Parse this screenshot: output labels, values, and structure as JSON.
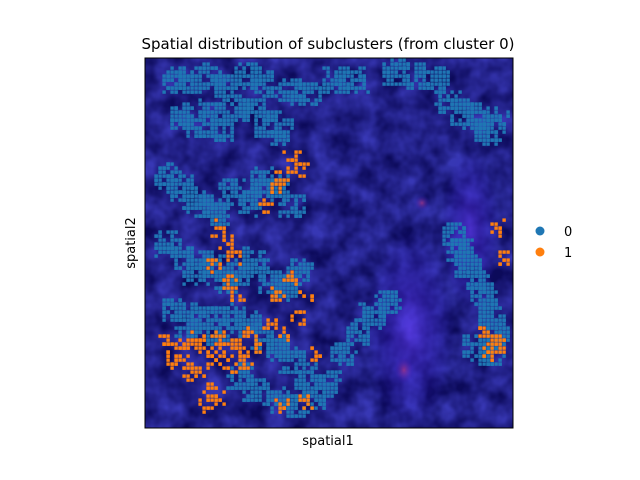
{
  "chart_data": {
    "type": "scatter",
    "title": "Spatial distribution of subclusters (from cluster 0)",
    "xlabel": "spatial1",
    "ylabel": "spatial2",
    "grid": false,
    "legend_placement": "right",
    "background": "tissue image (dark blue fluorescence)",
    "series": [
      {
        "name": "0",
        "color": "#1f77b4",
        "points": [
          [
            0.08,
            0.06
          ],
          [
            0.12,
            0.06
          ],
          [
            0.18,
            0.05
          ],
          [
            0.22,
            0.08
          ],
          [
            0.28,
            0.05
          ],
          [
            0.32,
            0.07
          ],
          [
            0.4,
            0.09
          ],
          [
            0.45,
            0.1
          ],
          [
            0.52,
            0.06
          ],
          [
            0.57,
            0.06
          ],
          [
            0.68,
            0.04
          ],
          [
            0.74,
            0.05
          ],
          [
            0.79,
            0.06
          ],
          [
            0.82,
            0.12
          ],
          [
            0.86,
            0.15
          ],
          [
            0.9,
            0.16
          ],
          [
            0.93,
            0.2
          ],
          [
            0.95,
            0.17
          ],
          [
            0.1,
            0.16
          ],
          [
            0.14,
            0.18
          ],
          [
            0.18,
            0.15
          ],
          [
            0.21,
            0.19
          ],
          [
            0.25,
            0.14
          ],
          [
            0.3,
            0.14
          ],
          [
            0.33,
            0.18
          ],
          [
            0.37,
            0.2
          ],
          [
            0.06,
            0.32
          ],
          [
            0.1,
            0.35
          ],
          [
            0.13,
            0.38
          ],
          [
            0.17,
            0.4
          ],
          [
            0.2,
            0.42
          ],
          [
            0.24,
            0.36
          ],
          [
            0.28,
            0.39
          ],
          [
            0.32,
            0.33
          ],
          [
            0.36,
            0.35
          ],
          [
            0.4,
            0.4
          ],
          [
            0.06,
            0.5
          ],
          [
            0.1,
            0.54
          ],
          [
            0.14,
            0.58
          ],
          [
            0.18,
            0.56
          ],
          [
            0.22,
            0.6
          ],
          [
            0.26,
            0.58
          ],
          [
            0.3,
            0.55
          ],
          [
            0.34,
            0.6
          ],
          [
            0.38,
            0.62
          ],
          [
            0.42,
            0.58
          ],
          [
            0.08,
            0.68
          ],
          [
            0.12,
            0.72
          ],
          [
            0.16,
            0.7
          ],
          [
            0.2,
            0.74
          ],
          [
            0.24,
            0.7
          ],
          [
            0.28,
            0.72
          ],
          [
            0.32,
            0.76
          ],
          [
            0.36,
            0.78
          ],
          [
            0.4,
            0.82
          ],
          [
            0.44,
            0.86
          ],
          [
            0.26,
            0.86
          ],
          [
            0.3,
            0.9
          ],
          [
            0.36,
            0.92
          ],
          [
            0.42,
            0.94
          ],
          [
            0.46,
            0.92
          ],
          [
            0.5,
            0.88
          ],
          [
            0.54,
            0.8
          ],
          [
            0.58,
            0.74
          ],
          [
            0.62,
            0.7
          ],
          [
            0.66,
            0.66
          ],
          [
            0.84,
            0.48
          ],
          [
            0.86,
            0.52
          ],
          [
            0.88,
            0.56
          ],
          [
            0.9,
            0.6
          ],
          [
            0.92,
            0.64
          ],
          [
            0.94,
            0.7
          ],
          [
            0.96,
            0.74
          ],
          [
            0.94,
            0.8
          ],
          [
            0.9,
            0.78
          ]
        ]
      },
      {
        "name": "1",
        "color": "#ff7f0e",
        "points": [
          [
            0.4,
            0.27
          ],
          [
            0.42,
            0.3
          ],
          [
            0.38,
            0.32
          ],
          [
            0.36,
            0.35
          ],
          [
            0.33,
            0.4
          ],
          [
            0.2,
            0.46
          ],
          [
            0.22,
            0.5
          ],
          [
            0.24,
            0.54
          ],
          [
            0.19,
            0.56
          ],
          [
            0.23,
            0.6
          ],
          [
            0.25,
            0.64
          ],
          [
            0.06,
            0.76
          ],
          [
            0.08,
            0.78
          ],
          [
            0.1,
            0.8
          ],
          [
            0.12,
            0.78
          ],
          [
            0.14,
            0.76
          ],
          [
            0.16,
            0.78
          ],
          [
            0.18,
            0.8
          ],
          [
            0.2,
            0.76
          ],
          [
            0.22,
            0.79
          ],
          [
            0.24,
            0.77
          ],
          [
            0.26,
            0.79
          ],
          [
            0.28,
            0.75
          ],
          [
            0.3,
            0.78
          ],
          [
            0.08,
            0.82
          ],
          [
            0.11,
            0.85
          ],
          [
            0.15,
            0.84
          ],
          [
            0.19,
            0.82
          ],
          [
            0.23,
            0.83
          ],
          [
            0.27,
            0.82
          ],
          [
            0.18,
            0.9
          ],
          [
            0.2,
            0.92
          ],
          [
            0.16,
            0.94
          ],
          [
            0.34,
            0.72
          ],
          [
            0.38,
            0.74
          ],
          [
            0.42,
            0.7
          ],
          [
            0.44,
            0.64
          ],
          [
            0.36,
            0.64
          ],
          [
            0.4,
            0.6
          ],
          [
            0.46,
            0.8
          ],
          [
            0.96,
            0.46
          ],
          [
            0.97,
            0.54
          ],
          [
            0.93,
            0.74
          ],
          [
            0.95,
            0.76
          ],
          [
            0.94,
            0.8
          ],
          [
            0.96,
            0.78
          ],
          [
            0.38,
            0.94
          ],
          [
            0.44,
            0.93
          ]
        ]
      }
    ]
  }
}
